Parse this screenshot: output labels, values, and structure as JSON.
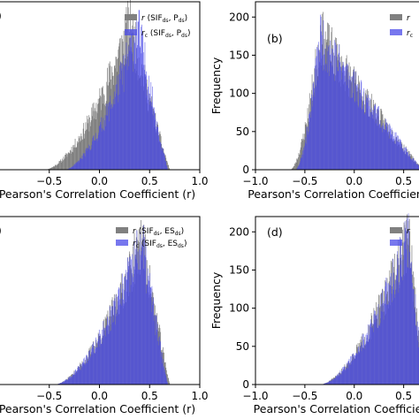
{
  "chart_data": [
    {
      "panel": "(a)",
      "type": "histogram",
      "xlabel": "Pearson's Correlation Coefficient (r)",
      "ylabel": "",
      "xlim": [
        -1.0,
        1.0
      ],
      "ylim": [
        0,
        220
      ],
      "xticks": [
        "−0.5",
        "0.0",
        "0.5",
        "1.0"
      ],
      "xtick_values": [
        -0.5,
        0.0,
        0.5,
        1.0
      ],
      "yticks": [],
      "legend": "top-right",
      "series": [
        {
          "name": "r (SIF_ds, P_ds)",
          "color": "#808080",
          "range": [
            -0.55,
            0.7
          ],
          "peak_x": 0.3,
          "peak": 190
        },
        {
          "name": "r_c (SIF_ds, P_ds)",
          "color": "#4a4ae8",
          "range": [
            -0.35,
            0.68
          ],
          "peak_x": 0.38,
          "peak": 185
        }
      ]
    },
    {
      "panel": "(b)",
      "type": "histogram",
      "xlabel": "Pearson's Correlation Coefficient",
      "ylabel": "Frequency",
      "xlim": [
        -1.0,
        0.7
      ],
      "ylim": [
        0,
        220
      ],
      "xticks": [
        "−1.0",
        "−0.5",
        "0.0",
        "0.5"
      ],
      "xtick_values": [
        -1.0,
        -0.5,
        0.0,
        0.5
      ],
      "yticks": [
        "0",
        "50",
        "100",
        "150",
        "200"
      ],
      "ytick_values": [
        0,
        50,
        100,
        150,
        200
      ],
      "legend": "top-right",
      "series": [
        {
          "name": "r",
          "color": "#808080",
          "range": [
            -0.65,
            0.7
          ],
          "peak_x": -0.35,
          "peak": 175
        },
        {
          "name": "r_c",
          "color": "#4a4ae8",
          "range": [
            -0.6,
            0.7
          ],
          "peak_x": -0.35,
          "peak": 172
        }
      ]
    },
    {
      "panel": "(c)",
      "type": "histogram",
      "xlabel": "Pearson's Correlation Coefficient (r)",
      "ylabel": "",
      "xlim": [
        -1.0,
        1.0
      ],
      "ylim": [
        0,
        220
      ],
      "xticks": [
        "−0.5",
        "0.0",
        "0.5",
        "1.0"
      ],
      "xtick_values": [
        -0.5,
        0.0,
        0.5,
        1.0
      ],
      "yticks": [],
      "legend": "top-right",
      "series": [
        {
          "name": "r (SIF_ds, ES_ds)",
          "color": "#808080",
          "range": [
            -0.45,
            0.7
          ],
          "peak_x": 0.42,
          "peak": 190
        },
        {
          "name": "r_c (SIF_ds, ES_ds)",
          "color": "#4a4ae8",
          "range": [
            -0.45,
            0.68
          ],
          "peak_x": 0.42,
          "peak": 185
        }
      ]
    },
    {
      "panel": "(d)",
      "type": "histogram",
      "xlabel": "Pearson's Correlation Coefficie",
      "ylabel": "Frequency",
      "xlim": [
        -1.0,
        0.7
      ],
      "ylim": [
        0,
        220
      ],
      "xticks": [
        "−1.0",
        "−0.5",
        "0.0",
        "0.5"
      ],
      "xtick_values": [
        -1.0,
        -0.5,
        0.0,
        0.5
      ],
      "yticks": [
        "0",
        "50",
        "100",
        "150",
        "200"
      ],
      "ytick_values": [
        0,
        50,
        100,
        150,
        200
      ],
      "legend": "top-right",
      "series": [
        {
          "name": "r",
          "color": "#808080",
          "range": [
            -0.35,
            0.7
          ],
          "peak_x": 0.55,
          "peak": 195
        },
        {
          "name": "r",
          "color": "#4a4ae8",
          "range": [
            -0.35,
            0.7
          ],
          "peak_x": 0.55,
          "peak": 190
        }
      ]
    }
  ]
}
